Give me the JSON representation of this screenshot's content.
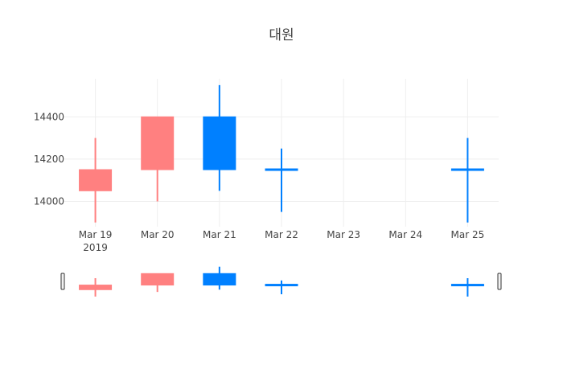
{
  "chart_data": {
    "type": "candlestick",
    "title": "대원",
    "x_categories": [
      "Mar 19",
      "Mar 20",
      "Mar 21",
      "Mar 22",
      "Mar 23",
      "Mar 24",
      "Mar 25"
    ],
    "x_year_label": "2019",
    "y_ticks": [
      14000,
      14200,
      14400
    ],
    "ylim": [
      13880,
      14580
    ],
    "candles": [
      {
        "date": "Mar 19",
        "open": 14150,
        "high": 14300,
        "low": 13900,
        "close": 14050
      },
      {
        "date": "Mar 20",
        "open": 14400,
        "high": 14400,
        "low": 14000,
        "close": 14150
      },
      {
        "date": "Mar 21",
        "open": 14150,
        "high": 14550,
        "low": 14050,
        "close": 14400
      },
      {
        "date": "Mar 22",
        "open": 14150,
        "high": 14250,
        "low": 13950,
        "close": 14150
      },
      {
        "date": "Mar 25",
        "open": 14150,
        "high": 14300,
        "low": 13900,
        "close": 14150
      }
    ],
    "colors": {
      "increasing": "#0080ff",
      "decreasing": "#ff8080",
      "grid": "#eeeeee",
      "text": "#444444",
      "title": "#444444"
    },
    "grid": true,
    "range_slider": true
  }
}
